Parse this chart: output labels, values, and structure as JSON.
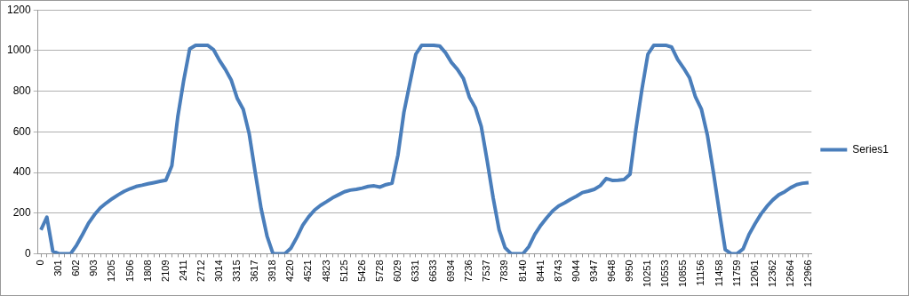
{
  "chart_data": {
    "type": "line",
    "categories": [
      "0",
      null,
      null,
      "301",
      null,
      null,
      "602",
      null,
      null,
      "903",
      null,
      null,
      "1205",
      null,
      null,
      "1506",
      null,
      null,
      "1808",
      null,
      null,
      "2109",
      null,
      null,
      "2411",
      null,
      null,
      "2712",
      null,
      null,
      "3014",
      null,
      null,
      "3315",
      null,
      null,
      "3617",
      null,
      null,
      "3918",
      null,
      null,
      "4220",
      null,
      null,
      "4521",
      null,
      null,
      "4823",
      null,
      null,
      "5125",
      null,
      null,
      "5426",
      null,
      null,
      "5728",
      null,
      null,
      "6029",
      null,
      null,
      "6331",
      null,
      null,
      "6633",
      null,
      null,
      "6934",
      null,
      null,
      "7236",
      null,
      null,
      "7537",
      null,
      null,
      "7839",
      null,
      null,
      "8140",
      null,
      null,
      "8441",
      null,
      null,
      "8743",
      null,
      null,
      "9044",
      null,
      null,
      "9347",
      null,
      null,
      "9648",
      null,
      null,
      "9950",
      null,
      null,
      "10251",
      null,
      null,
      "10553",
      null,
      null,
      "10855",
      null,
      null,
      "11156",
      null,
      null,
      "11458",
      null,
      null,
      "11759",
      null,
      null,
      "12061",
      null,
      null,
      "12362",
      null,
      null,
      "12664",
      null,
      null,
      "12966"
    ],
    "series": [
      {
        "name": "Series1",
        "color": "#4a7ebb",
        "values": [
          117,
          180,
          12,
          0,
          0,
          0,
          42,
          95,
          150,
          192,
          226,
          250,
          271,
          290,
          307,
          320,
          331,
          337,
          344,
          350,
          356,
          362,
          433,
          674,
          854,
          1008,
          1026,
          1026,
          1026,
          1005,
          952,
          907,
          854,
          764,
          711,
          591,
          403,
          223,
          87,
          0,
          0,
          0,
          27,
          80,
          140,
          182,
          215,
          238,
          256,
          275,
          290,
          305,
          313,
          317,
          323,
          331,
          334,
          328,
          340,
          347,
          486,
          696,
          839,
          982,
          1026,
          1026,
          1026,
          1023,
          989,
          941,
          907,
          862,
          771,
          719,
          626,
          456,
          275,
          117,
          30,
          0,
          0,
          0,
          35,
          95,
          140,
          177,
          211,
          235,
          250,
          268,
          283,
          301,
          308,
          317,
          335,
          370,
          361,
          362,
          365,
          391,
          614,
          809,
          982,
          1026,
          1026,
          1026,
          1017,
          956,
          914,
          866,
          771,
          711,
          584,
          403,
          208,
          20,
          0,
          0,
          24,
          95,
          147,
          195,
          233,
          265,
          290,
          305,
          325,
          340,
          347,
          350
        ]
      }
    ],
    "ylim": [
      0,
      1200
    ],
    "yticks": [
      0,
      200,
      400,
      600,
      800,
      1000,
      1200
    ],
    "grid": "y",
    "legend": "right"
  }
}
